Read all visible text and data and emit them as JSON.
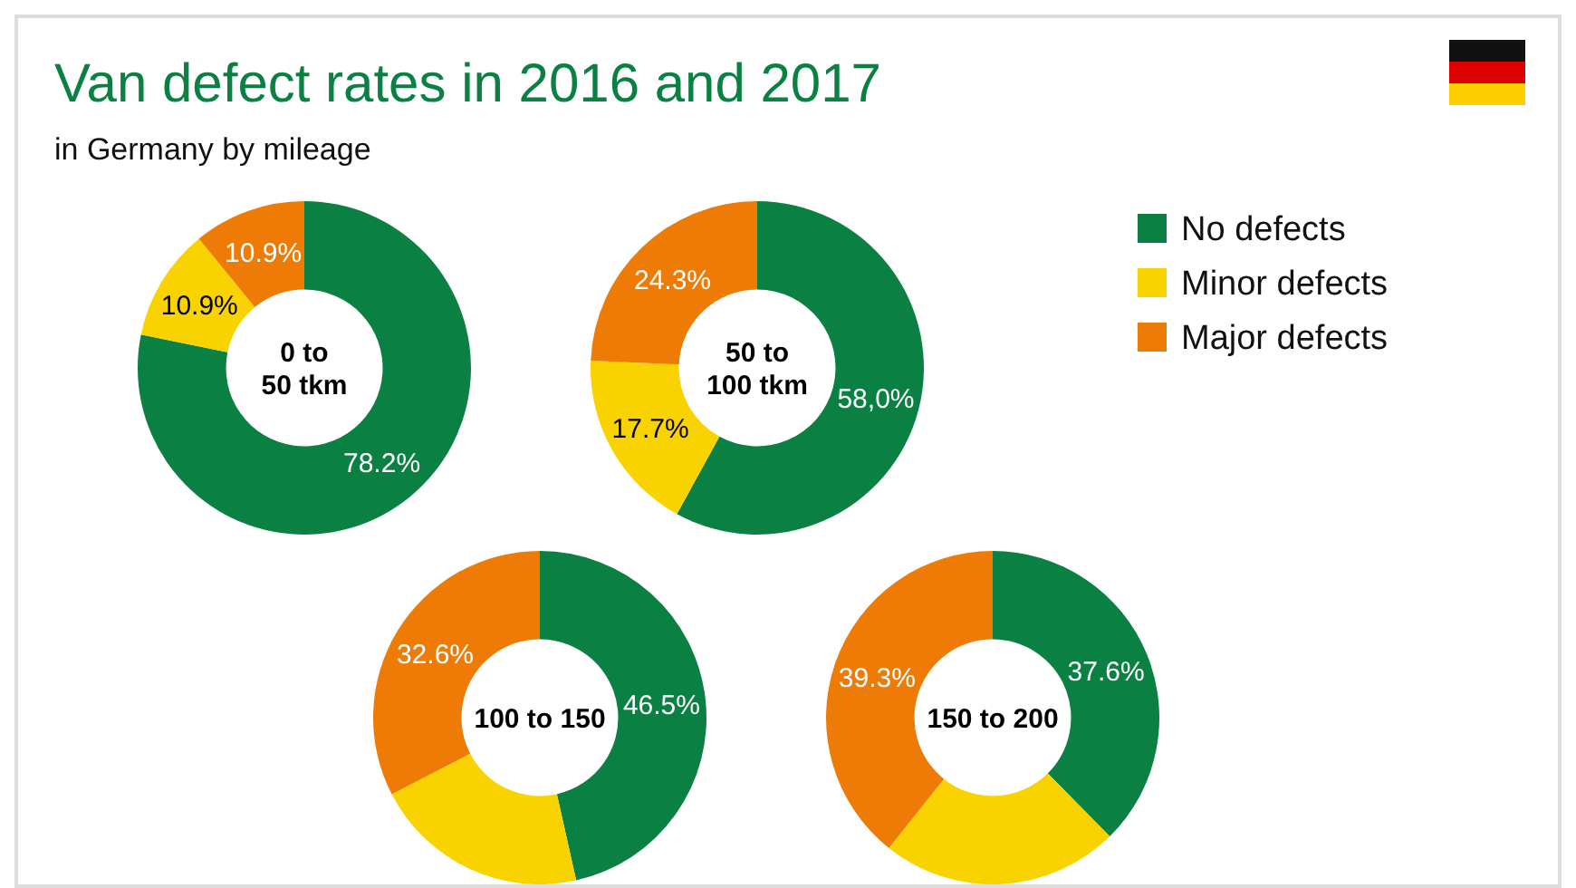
{
  "chart_data": [
    {
      "type": "other",
      "title": "Van defect rates in 2016 and 2017",
      "subtitle": "in Germany by mileage"
    },
    {
      "type": "donut",
      "title": "0 to\n50 tkm",
      "categories": [
        "No defects",
        "Minor defects",
        "Major defects"
      ],
      "values": [
        78.2,
        10.9,
        10.9
      ],
      "colors": [
        "#0a8143",
        "#f8d300",
        "#ed7b06"
      ],
      "value_labels": [
        "78.2%",
        "10.9%",
        "10.9%"
      ],
      "legend": "top right"
    },
    {
      "type": "donut",
      "title": "50 to\n100 tkm",
      "categories": [
        null,
        null,
        null
      ],
      "values": [
        58.0,
        17.7,
        24.3
      ],
      "colors": [
        "#0a8143",
        "#f8d300",
        "#ed7b06"
      ],
      "value_labels": [
        "58,0%",
        "17.7%",
        "24.3%"
      ]
    },
    {
      "type": "donut",
      "title": "100 to 150",
      "categories": [
        null,
        null,
        null
      ],
      "values": [
        46.5,
        20.9,
        32.6
      ],
      "colors": [
        "#0a8143",
        "#f8d300",
        "#ed7b06"
      ],
      "value_labels": [
        "46.5%",
        null,
        "32.6%"
      ]
    },
    {
      "type": "donut",
      "title": "150 to 200",
      "categories": [
        null,
        null,
        null
      ],
      "values": [
        37.6,
        23.1,
        39.3
      ],
      "colors": [
        "#0a8143",
        "#f8d300",
        "#ed7b06"
      ],
      "value_labels": [
        "37.6%",
        null,
        "39.3%"
      ]
    }
  ]
}
